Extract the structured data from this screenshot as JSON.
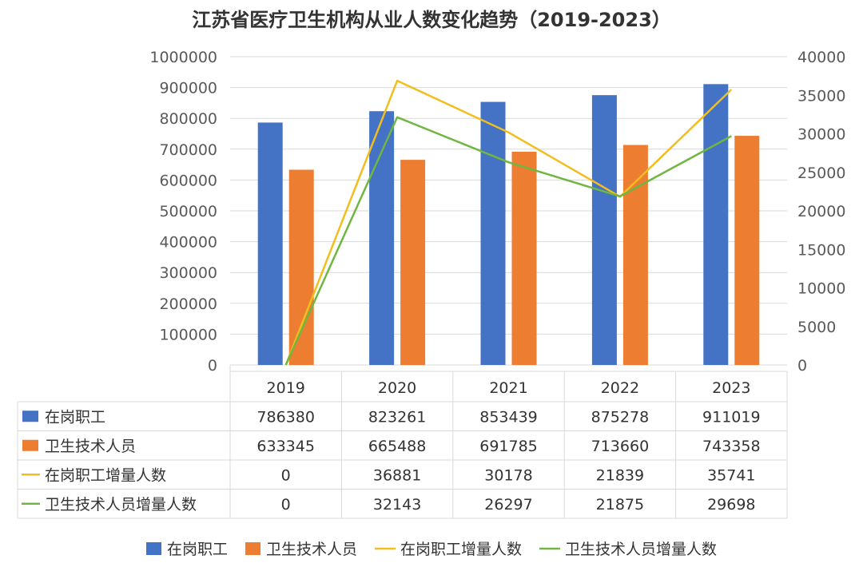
{
  "chart_data": {
    "type": "bar",
    "title": "江苏省医疗卫生机构从业人数变化趋势（2019-2023）",
    "categories": [
      "2019",
      "2020",
      "2021",
      "2022",
      "2023"
    ],
    "y_left": {
      "min": 0,
      "max": 1000000,
      "step": 100000
    },
    "y_right": {
      "min": 0,
      "max": 40000,
      "step": 5000
    },
    "grid": true,
    "legend_position": "bottom",
    "series": [
      {
        "name": "在岗职工",
        "type": "bar",
        "axis": "left",
        "color": "#4472C4",
        "values": [
          786380,
          823261,
          853439,
          875278,
          911019
        ]
      },
      {
        "name": "卫生技术人员",
        "type": "bar",
        "axis": "left",
        "color": "#ED7D31",
        "values": [
          633345,
          665488,
          691785,
          713660,
          743358
        ]
      },
      {
        "name": "在岗职工增量人数",
        "type": "line",
        "axis": "right",
        "color": "#F2BE1E",
        "values": [
          0,
          36881,
          30178,
          21839,
          35741
        ]
      },
      {
        "name": "卫生技术人员增量人数",
        "type": "line",
        "axis": "right",
        "color": "#70B640",
        "values": [
          0,
          32143,
          26297,
          21875,
          29698
        ]
      }
    ]
  }
}
